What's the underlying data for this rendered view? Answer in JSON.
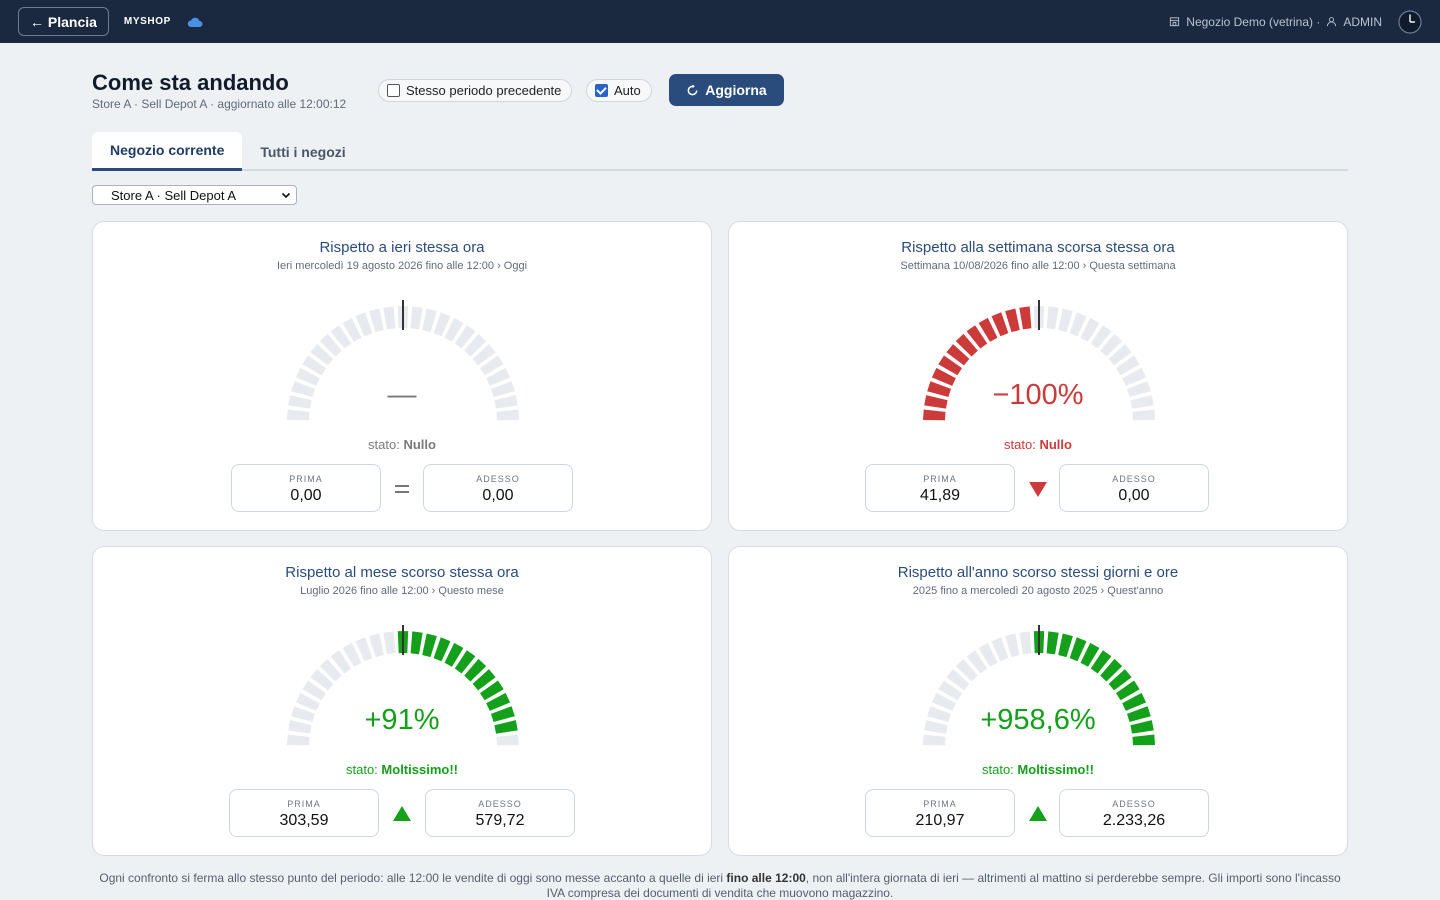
{
  "topbar": {
    "back_label": "← Plancia",
    "brand": "MYSHOP",
    "store_info": "Negozio Demo (vetrina) ·",
    "user": "ADMIN"
  },
  "header": {
    "title": "Come sta andando",
    "subtitle": "Store A · Sell Depot A · aggiornato alle 12:00:12",
    "prev_period_label": "Stesso periodo precedente",
    "prev_period_checked": false,
    "auto_label": "Auto",
    "auto_checked": true,
    "refresh_label": "Aggiorna"
  },
  "tabs": [
    {
      "label": "Negozio corrente",
      "active": true
    },
    {
      "label": "Tutti i negozi",
      "active": false
    }
  ],
  "store_select": {
    "value": "Store A · Sell Depot A"
  },
  "colors": {
    "up": "#14a01a",
    "down": "#cc3a3a",
    "neutral": "#7a7a7a",
    "empty": "#e7ebf0"
  },
  "cards": [
    {
      "title": "Rispetto a ieri stessa ora",
      "subtitle": "Ieri mercoledì 19 agosto 2026 fino alle 12:00 › Oggi",
      "value": "—",
      "pct": null,
      "stato_label": "stato:",
      "stato": "Nullo",
      "tone": "neutral",
      "comparator": "=",
      "prima_label": "PRIMA",
      "prima": "0,00",
      "adesso_label": "ADESSO",
      "adesso": "0,00"
    },
    {
      "title": "Rispetto alla settimana scorsa stessa ora",
      "subtitle": "Settimana 10/08/2026 fino alle 12:00 › Questa settimana",
      "value": "−100%",
      "pct": -100,
      "stato_label": "stato:",
      "stato": "Nullo",
      "tone": "down",
      "comparator": "down",
      "prima_label": "PRIMA",
      "prima": "41,89",
      "adesso_label": "ADESSO",
      "adesso": "0,00"
    },
    {
      "title": "Rispetto al mese scorso stessa ora",
      "subtitle": "Luglio 2026 fino alle 12:00 › Questo mese",
      "value": "+91%",
      "pct": 91,
      "stato_label": "stato:",
      "stato": "Moltissimo!!",
      "tone": "up",
      "comparator": "up",
      "prima_label": "PRIMA",
      "prima": "303,59",
      "adesso_label": "ADESSO",
      "adesso": "579,72"
    },
    {
      "title": "Rispetto all'anno scorso stessi giorni e ore",
      "subtitle": "2025 fino a mercoledì 20 agosto 2025 › Quest'anno",
      "value": "+958,6%",
      "pct": 958.6,
      "stato_label": "stato:",
      "stato": "Moltissimo!!",
      "tone": "up",
      "comparator": "up",
      "prima_label": "PRIMA",
      "prima": "210,97",
      "adesso_label": "ADESSO",
      "adesso": "2.233,26"
    }
  ],
  "footnote": {
    "part1": "Ogni confronto si ferma allo stesso punto del periodo: alle 12:00 le vendite di oggi sono messe accanto a quelle di ieri ",
    "bold": "fino alle 12:00",
    "part2": ", non all'intera giornata di ieri — altrimenti al mattino si perderebbe sempre. Gli importi sono l'incasso IVA compresa dei documenti di vendita che muovono magazzino."
  }
}
